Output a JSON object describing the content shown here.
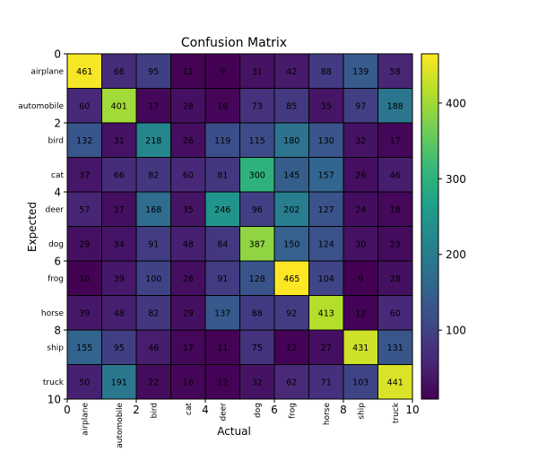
{
  "chart_data": {
    "type": "heatmap",
    "title": "Confusion Matrix",
    "xlabel": "Actual",
    "ylabel": "Expected",
    "row_labels": [
      "airplane",
      "automobile",
      "bird",
      "cat",
      "deer",
      "dog",
      "frog",
      "horse",
      "ship",
      "truck"
    ],
    "col_labels": [
      "airplane",
      "automobile",
      "bird",
      "cat",
      "deer",
      "dog",
      "frog",
      "horse",
      "ship",
      "truck"
    ],
    "values": [
      [
        461,
        66,
        95,
        11,
        9,
        31,
        42,
        88,
        139,
        58
      ],
      [
        60,
        401,
        17,
        28,
        16,
        73,
        85,
        35,
        97,
        188
      ],
      [
        132,
        31,
        218,
        26,
        119,
        115,
        180,
        130,
        32,
        17
      ],
      [
        37,
        66,
        82,
        60,
        81,
        300,
        145,
        157,
        26,
        46
      ],
      [
        57,
        27,
        168,
        35,
        246,
        96,
        202,
        127,
        24,
        18
      ],
      [
        29,
        34,
        91,
        48,
        84,
        387,
        150,
        124,
        30,
        23
      ],
      [
        10,
        39,
        100,
        26,
        91,
        128,
        465,
        104,
        9,
        28
      ],
      [
        39,
        48,
        82,
        29,
        137,
        88,
        92,
        413,
        12,
        60
      ],
      [
        155,
        95,
        46,
        17,
        11,
        75,
        12,
        27,
        431,
        131
      ],
      [
        50,
        191,
        22,
        16,
        12,
        32,
        62,
        71,
        103,
        441
      ]
    ],
    "x_ticks": [
      0,
      2,
      4,
      6,
      8,
      10
    ],
    "y_ticks": [
      0,
      2,
      4,
      6,
      8,
      10
    ],
    "xlim": [
      0,
      10
    ],
    "ylim": [
      10,
      0
    ],
    "colormap": "viridis",
    "colorbar": {
      "range": [
        9,
        465
      ],
      "ticks": [
        100,
        200,
        300,
        400
      ]
    },
    "grid": false,
    "cell_border_color": "#000000"
  }
}
